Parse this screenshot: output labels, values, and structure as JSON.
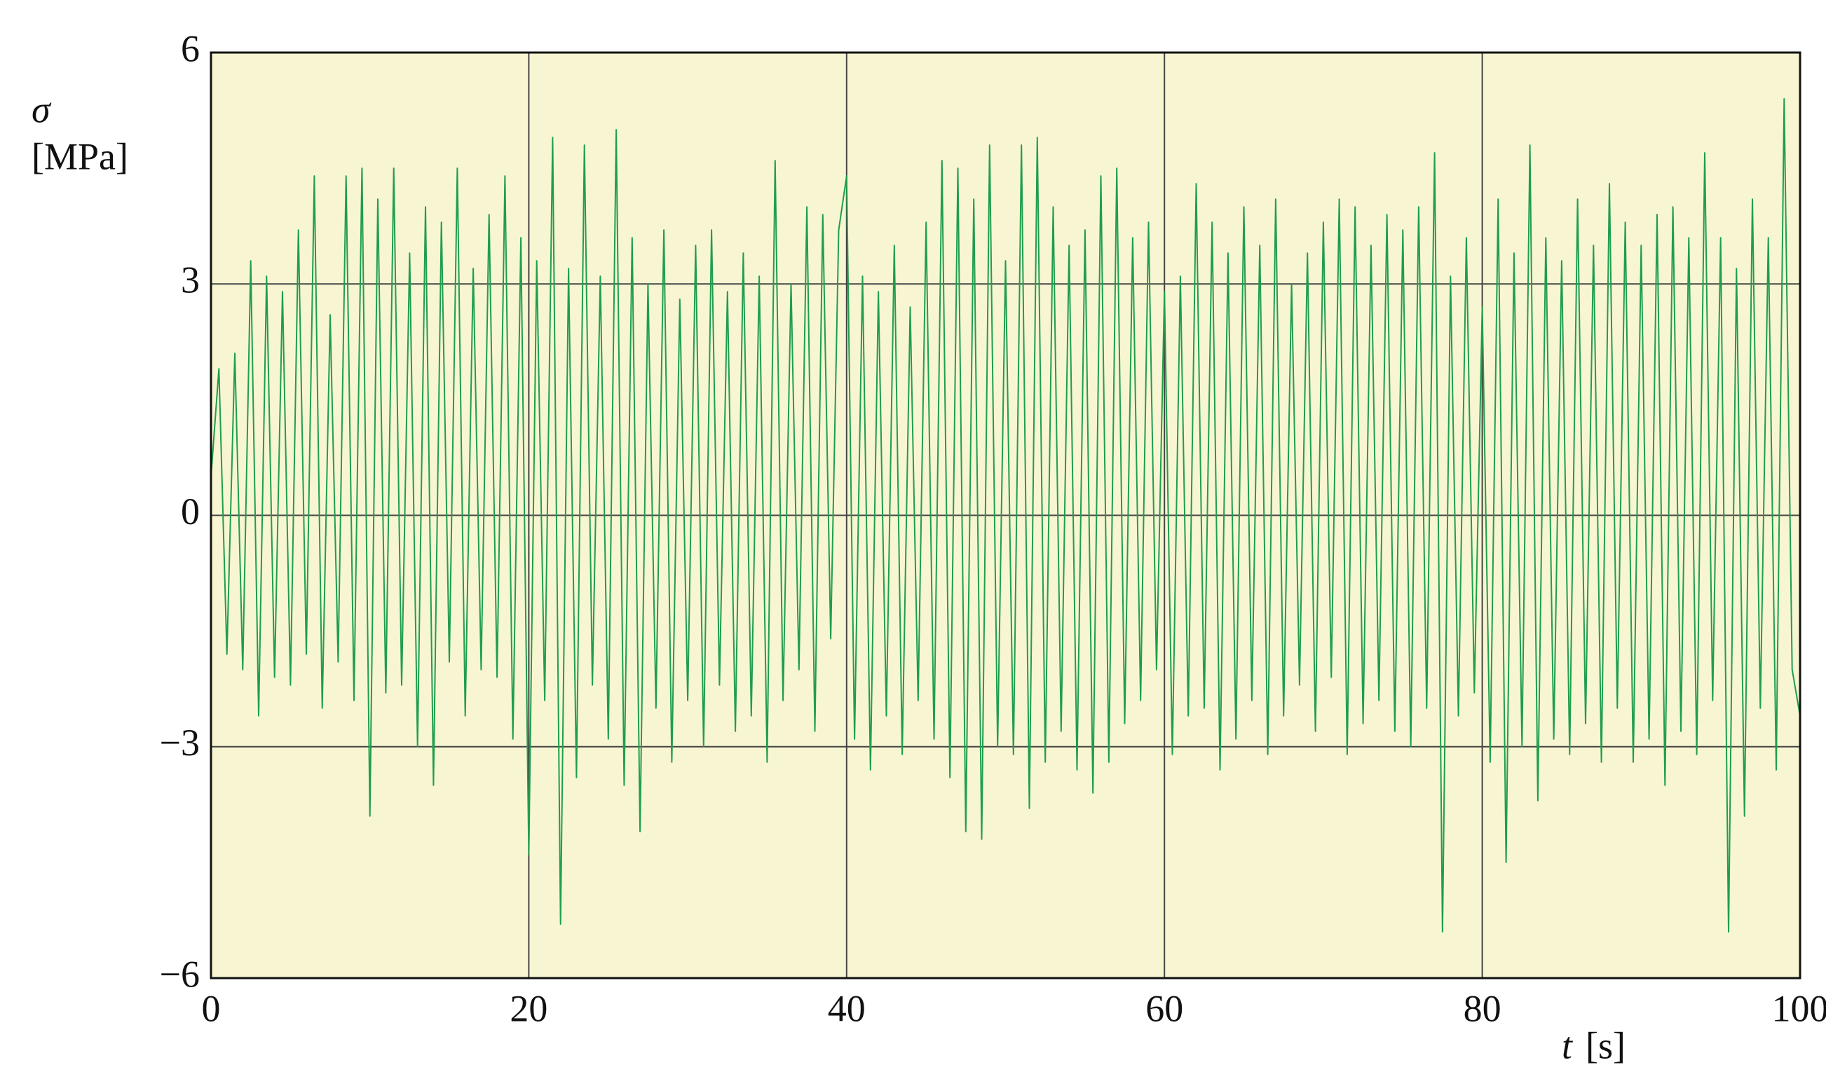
{
  "chart_data": {
    "type": "line",
    "y_label": "σ",
    "y_unit": "[MPa]",
    "x_label": "t",
    "x_unit": "[s]",
    "xlim": [
      0,
      100
    ],
    "xticks": [
      0,
      20,
      40,
      60,
      80,
      100
    ],
    "ylim": [
      -6,
      6
    ],
    "yticks": [
      {
        "value": -6,
        "label": "−6"
      },
      {
        "value": -3,
        "label": "−3"
      },
      0,
      3,
      6
    ],
    "grid": true,
    "background": "#f8f6d2",
    "x": [
      0,
      0.5,
      1,
      1.5,
      2,
      2.5,
      3,
      3.5,
      4,
      4.5,
      5,
      5.5,
      6,
      6.5,
      7,
      7.5,
      8,
      8.5,
      9,
      9.5,
      10,
      10.5,
      11,
      11.5,
      12,
      12.5,
      13,
      13.5,
      14,
      14.5,
      15,
      15.5,
      16,
      16.5,
      17,
      17.5,
      18,
      18.5,
      19,
      19.5,
      20,
      20.5,
      21,
      21.5,
      22,
      22.5,
      23,
      23.5,
      24,
      24.5,
      25,
      25.5,
      26,
      26.5,
      27,
      27.5,
      28,
      28.5,
      29,
      29.5,
      30,
      30.5,
      31,
      31.5,
      32,
      32.5,
      33,
      33.5,
      34,
      34.5,
      35,
      35.5,
      36,
      36.5,
      37,
      37.5,
      38,
      38.5,
      39,
      39.5,
      40,
      40.5,
      41,
      41.5,
      42,
      42.5,
      43,
      43.5,
      44,
      44.5,
      45,
      45.5,
      46,
      46.5,
      47,
      47.5,
      48,
      48.5,
      49,
      49.5,
      50,
      50.5,
      51,
      51.5,
      52,
      52.5,
      53,
      53.5,
      54,
      54.5,
      55,
      55.5,
      56,
      56.5,
      57,
      57.5,
      58,
      58.5,
      59,
      59.5,
      60,
      60.5,
      61,
      61.5,
      62,
      62.5,
      63,
      63.5,
      64,
      64.5,
      65,
      65.5,
      66,
      66.5,
      67,
      67.5,
      68,
      68.5,
      69,
      69.5,
      70,
      70.5,
      71,
      71.5,
      72,
      72.5,
      73,
      73.5,
      74,
      74.5,
      75,
      75.5,
      76,
      76.5,
      77,
      77.5,
      78,
      78.5,
      79,
      79.5,
      80,
      80.5,
      81,
      81.5,
      82,
      82.5,
      83,
      83.5,
      84,
      84.5,
      85,
      85.5,
      86,
      86.5,
      87,
      87.5,
      88,
      88.5,
      89,
      89.5,
      90,
      90.5,
      91,
      91.5,
      92,
      92.5,
      93,
      93.5,
      94,
      94.5,
      95,
      95.5,
      96,
      96.5,
      97,
      97.5,
      98,
      98.5,
      99,
      99.5,
      100
    ],
    "series": [
      {
        "color": "#1f9e4c",
        "values": [
          0.5,
          1.9,
          -1.8,
          2.1,
          -2.0,
          3.3,
          -2.6,
          3.1,
          -2.1,
          2.9,
          -2.2,
          3.7,
          -1.8,
          4.4,
          -2.5,
          2.6,
          -1.9,
          4.4,
          -2.4,
          4.5,
          -3.9,
          4.1,
          -2.3,
          4.5,
          -2.2,
          3.4,
          -3.0,
          4.0,
          -3.5,
          3.8,
          -1.9,
          4.5,
          -2.6,
          3.2,
          -2.0,
          3.9,
          -2.1,
          4.4,
          -2.9,
          3.6,
          -4.4,
          3.3,
          -2.4,
          4.9,
          -5.3,
          3.2,
          -3.4,
          4.8,
          -2.2,
          3.1,
          -2.9,
          5.0,
          -3.5,
          3.6,
          -4.1,
          3.0,
          -2.5,
          3.7,
          -3.2,
          2.8,
          -2.4,
          3.5,
          -3.0,
          3.7,
          -2.2,
          2.9,
          -2.8,
          3.4,
          -2.6,
          3.1,
          -3.2,
          4.6,
          -2.4,
          3.0,
          -2.0,
          4.0,
          -2.8,
          3.9,
          -1.6,
          3.7,
          4.4,
          -2.9,
          3.1,
          -3.3,
          2.9,
          -2.6,
          3.5,
          -3.1,
          2.7,
          -2.4,
          3.8,
          -2.9,
          4.6,
          -3.4,
          4.5,
          -4.1,
          4.1,
          -4.2,
          4.8,
          -3.0,
          3.3,
          -3.1,
          4.8,
          -3.8,
          4.9,
          -3.2,
          4.0,
          -2.8,
          3.5,
          -3.3,
          3.7,
          -3.6,
          4.4,
          -3.2,
          4.5,
          -2.7,
          3.6,
          -2.4,
          3.8,
          -2.0,
          2.9,
          -3.1,
          3.1,
          -2.6,
          4.3,
          -2.5,
          3.8,
          -3.3,
          3.4,
          -2.9,
          4.0,
          -2.4,
          3.5,
          -3.1,
          4.1,
          -2.6,
          3.0,
          -2.2,
          3.4,
          -2.8,
          3.8,
          -2.1,
          4.1,
          -3.1,
          4.0,
          -2.7,
          3.5,
          -2.4,
          3.9,
          -2.8,
          3.7,
          -3.0,
          4.0,
          -2.5,
          4.7,
          -5.4,
          3.1,
          -2.6,
          3.6,
          -2.3,
          2.7,
          -3.2,
          4.1,
          -4.5,
          3.4,
          -3.0,
          4.8,
          -3.7,
          3.6,
          -2.9,
          3.3,
          -3.1,
          4.1,
          -2.7,
          3.5,
          -3.2,
          4.3,
          -2.5,
          3.8,
          -3.2,
          3.5,
          -2.9,
          3.9,
          -3.5,
          4.0,
          -2.8,
          3.6,
          -3.1,
          4.7,
          -2.4,
          3.6,
          -5.4,
          3.2,
          -3.9,
          4.1,
          -2.5,
          3.6,
          -3.3,
          5.4,
          -2.0,
          -2.6
        ]
      }
    ]
  }
}
